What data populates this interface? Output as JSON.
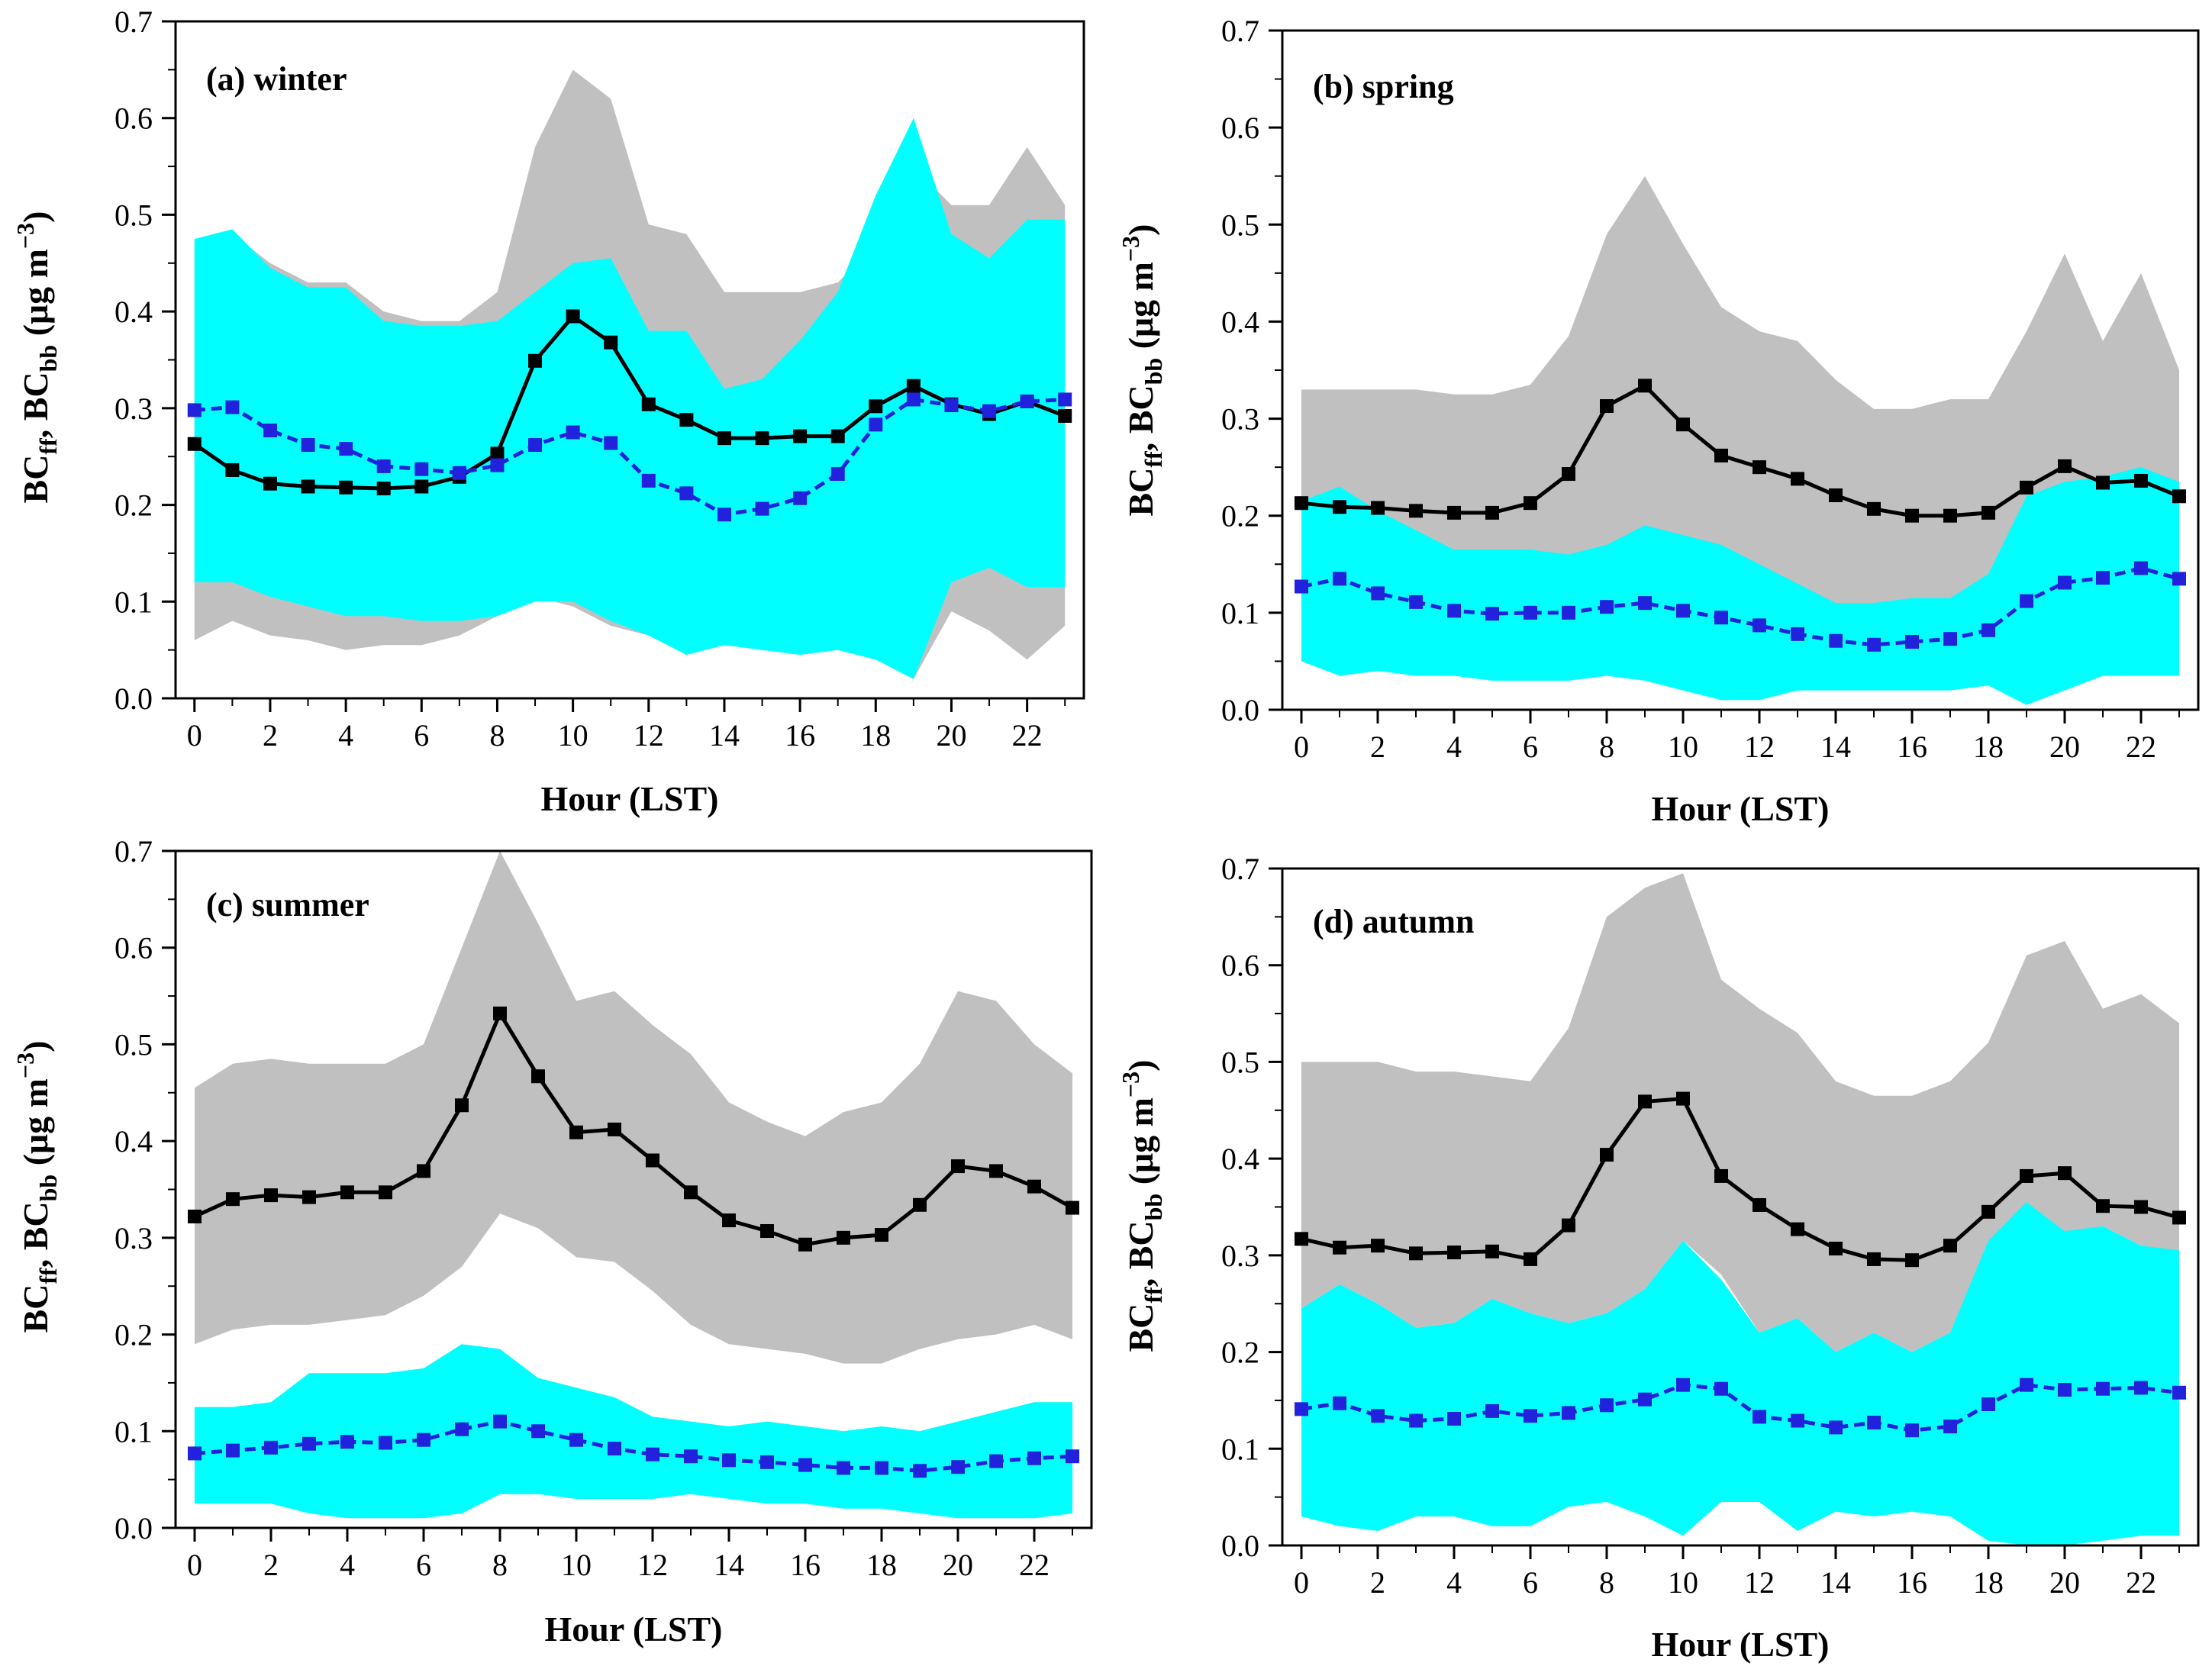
{
  "figure": {
    "xlabel": "Hour (LST)",
    "ylabel": {
      "main": "BC",
      "sub1": "ff",
      "sep": ", BC",
      "sub2": "bb",
      "unit_open": " (μg m",
      "sup": "−3",
      "unit_close": ")"
    }
  },
  "colors": {
    "ff_line": "#000000",
    "bb_line": "#2222dd",
    "ff_band": "#c0c0c0",
    "bb_band": "#00ffff"
  },
  "chart_data": [
    {
      "type": "line",
      "title": "(a) winter",
      "xlabel": "Hour (LST)",
      "ylabel": "BCff, BCbb (μg m−3)",
      "x": [
        0,
        1,
        2,
        3,
        4,
        5,
        6,
        7,
        8,
        9,
        10,
        11,
        12,
        13,
        14,
        15,
        16,
        17,
        18,
        19,
        20,
        21,
        22,
        23
      ],
      "xlim": [
        -0.5,
        23.5
      ],
      "ylim": [
        0,
        0.7
      ],
      "xticks": [
        0,
        2,
        4,
        6,
        8,
        10,
        12,
        14,
        16,
        18,
        20,
        22
      ],
      "yticks": [
        0.0,
        0.1,
        0.2,
        0.3,
        0.4,
        0.5,
        0.6,
        0.7
      ],
      "ytick_labels": [
        "0.0",
        "0.1",
        "0.2",
        "0.3",
        "0.4",
        "0.5",
        "0.6",
        "0.7"
      ],
      "series": [
        {
          "name": "BCff",
          "values": [
            0.263,
            0.236,
            0.222,
            0.219,
            0.218,
            0.217,
            0.219,
            0.229,
            0.253,
            0.349,
            0.395,
            0.368,
            0.304,
            0.288,
            0.269,
            0.269,
            0.271,
            0.271,
            0.302,
            0.323,
            0.304,
            0.294,
            0.307,
            0.292
          ],
          "upper": [
            0.47,
            0.48,
            0.45,
            0.43,
            0.43,
            0.4,
            0.39,
            0.39,
            0.42,
            0.57,
            0.65,
            0.62,
            0.49,
            0.48,
            0.42,
            0.42,
            0.42,
            0.43,
            0.47,
            0.55,
            0.51,
            0.51,
            0.57,
            0.51
          ],
          "lower": [
            0.06,
            0.08,
            0.065,
            0.06,
            0.05,
            0.055,
            0.055,
            0.065,
            0.085,
            0.105,
            0.095,
            0.075,
            0.065,
            0.045,
            0.055,
            0.05,
            0.045,
            0.05,
            0.04,
            0.02,
            0.09,
            0.07,
            0.04,
            0.075
          ]
        },
        {
          "name": "BCbb",
          "values": [
            0.298,
            0.301,
            0.277,
            0.262,
            0.258,
            0.24,
            0.237,
            0.233,
            0.241,
            0.262,
            0.275,
            0.264,
            0.225,
            0.212,
            0.19,
            0.196,
            0.207,
            0.232,
            0.283,
            0.309,
            0.303,
            0.297,
            0.307,
            0.309
          ],
          "upper": [
            0.475,
            0.485,
            0.445,
            0.425,
            0.425,
            0.39,
            0.385,
            0.385,
            0.39,
            0.42,
            0.45,
            0.455,
            0.38,
            0.38,
            0.32,
            0.33,
            0.37,
            0.42,
            0.52,
            0.6,
            0.48,
            0.455,
            0.495,
            0.495
          ],
          "lower": [
            0.12,
            0.12,
            0.105,
            0.095,
            0.085,
            0.085,
            0.08,
            0.08,
            0.085,
            0.1,
            0.1,
            0.08,
            0.065,
            0.045,
            0.055,
            0.05,
            0.045,
            0.05,
            0.04,
            0.02,
            0.12,
            0.135,
            0.115,
            0.115
          ]
        }
      ]
    },
    {
      "type": "line",
      "title": "(b) spring",
      "xlabel": "Hour (LST)",
      "ylabel": "BCff, BCbb (μg m−3)",
      "x": [
        0,
        1,
        2,
        3,
        4,
        5,
        6,
        7,
        8,
        9,
        10,
        11,
        12,
        13,
        14,
        15,
        16,
        17,
        18,
        19,
        20,
        21,
        22,
        23
      ],
      "xlim": [
        -0.5,
        23.5
      ],
      "ylim": [
        0,
        0.7
      ],
      "xticks": [
        0,
        2,
        4,
        6,
        8,
        10,
        12,
        14,
        16,
        18,
        20,
        22
      ],
      "yticks": [
        0.0,
        0.1,
        0.2,
        0.3,
        0.4,
        0.5,
        0.6,
        0.7
      ],
      "ytick_labels": [
        "0.0",
        "0.1",
        "0.2",
        "0.3",
        "0.4",
        "0.5",
        "0.6",
        "0.7"
      ],
      "series": [
        {
          "name": "BCff",
          "values": [
            0.213,
            0.209,
            0.208,
            0.205,
            0.203,
            0.203,
            0.213,
            0.243,
            0.313,
            0.334,
            0.294,
            0.262,
            0.25,
            0.238,
            0.221,
            0.207,
            0.2,
            0.2,
            0.203,
            0.229,
            0.251,
            0.234,
            0.236,
            0.22
          ],
          "upper": [
            0.33,
            0.33,
            0.33,
            0.33,
            0.325,
            0.325,
            0.335,
            0.385,
            0.49,
            0.55,
            0.48,
            0.415,
            0.39,
            0.38,
            0.34,
            0.31,
            0.31,
            0.32,
            0.32,
            0.39,
            0.47,
            0.38,
            0.45,
            0.35
          ],
          "lower": [
            0.13,
            0.13,
            0.12,
            0.12,
            0.12,
            0.11,
            0.11,
            0.11,
            0.12,
            0.13,
            0.11,
            0.11,
            0.09,
            0.075,
            0.06,
            0.055,
            0.06,
            0.055,
            0.06,
            0.13,
            0.14,
            0.14,
            0.15,
            0.13
          ]
        },
        {
          "name": "BCbb",
          "values": [
            0.127,
            0.135,
            0.12,
            0.111,
            0.102,
            0.099,
            0.1,
            0.1,
            0.106,
            0.11,
            0.102,
            0.095,
            0.087,
            0.078,
            0.071,
            0.067,
            0.07,
            0.073,
            0.082,
            0.112,
            0.131,
            0.136,
            0.146,
            0.135
          ],
          "upper": [
            0.215,
            0.23,
            0.205,
            0.185,
            0.165,
            0.165,
            0.165,
            0.16,
            0.17,
            0.19,
            0.18,
            0.17,
            0.15,
            0.13,
            0.11,
            0.11,
            0.115,
            0.115,
            0.14,
            0.22,
            0.235,
            0.24,
            0.25,
            0.235
          ],
          "lower": [
            0.05,
            0.035,
            0.04,
            0.035,
            0.035,
            0.03,
            0.03,
            0.03,
            0.035,
            0.03,
            0.02,
            0.01,
            0.01,
            0.02,
            0.02,
            0.02,
            0.02,
            0.02,
            0.025,
            0.005,
            0.02,
            0.035,
            0.035,
            0.035
          ]
        }
      ]
    },
    {
      "type": "line",
      "title": "(c) summer",
      "xlabel": "Hour (LST)",
      "ylabel": "BCff, BCbb (μg m−3)",
      "x": [
        0,
        1,
        2,
        3,
        4,
        5,
        6,
        7,
        8,
        9,
        10,
        11,
        12,
        13,
        14,
        15,
        16,
        17,
        18,
        19,
        20,
        21,
        22,
        23
      ],
      "xlim": [
        -0.5,
        23.5
      ],
      "ylim": [
        0,
        0.7
      ],
      "xticks": [
        0,
        2,
        4,
        6,
        8,
        10,
        12,
        14,
        16,
        18,
        20,
        22
      ],
      "yticks": [
        0.0,
        0.1,
        0.2,
        0.3,
        0.4,
        0.5,
        0.6,
        0.7
      ],
      "ytick_labels": [
        "0.0",
        "0.1",
        "0.2",
        "0.3",
        "0.4",
        "0.5",
        "0.6",
        "0.7"
      ],
      "series": [
        {
          "name": "BCff",
          "values": [
            0.322,
            0.34,
            0.344,
            0.342,
            0.347,
            0.347,
            0.369,
            0.437,
            0.532,
            0.467,
            0.409,
            0.412,
            0.38,
            0.347,
            0.318,
            0.307,
            0.293,
            0.3,
            0.303,
            0.334,
            0.374,
            0.369,
            0.353,
            0.331
          ],
          "upper": [
            0.455,
            0.48,
            0.485,
            0.48,
            0.48,
            0.48,
            0.5,
            0.6,
            0.7,
            0.625,
            0.545,
            0.555,
            0.52,
            0.49,
            0.44,
            0.42,
            0.405,
            0.43,
            0.44,
            0.48,
            0.555,
            0.545,
            0.5,
            0.47
          ],
          "lower": [
            0.19,
            0.205,
            0.21,
            0.21,
            0.215,
            0.22,
            0.24,
            0.27,
            0.325,
            0.31,
            0.28,
            0.275,
            0.245,
            0.21,
            0.19,
            0.185,
            0.18,
            0.17,
            0.17,
            0.185,
            0.195,
            0.2,
            0.21,
            0.195
          ]
        },
        {
          "name": "BCbb",
          "values": [
            0.077,
            0.08,
            0.083,
            0.087,
            0.089,
            0.088,
            0.091,
            0.102,
            0.11,
            0.1,
            0.091,
            0.082,
            0.076,
            0.074,
            0.07,
            0.068,
            0.065,
            0.062,
            0.062,
            0.059,
            0.063,
            0.069,
            0.072,
            0.074
          ],
          "upper": [
            0.125,
            0.125,
            0.13,
            0.16,
            0.16,
            0.16,
            0.165,
            0.19,
            0.185,
            0.155,
            0.145,
            0.135,
            0.115,
            0.11,
            0.105,
            0.11,
            0.105,
            0.1,
            0.105,
            0.1,
            0.11,
            0.12,
            0.13,
            0.13
          ],
          "lower": [
            0.025,
            0.025,
            0.025,
            0.015,
            0.01,
            0.01,
            0.01,
            0.015,
            0.035,
            0.035,
            0.03,
            0.03,
            0.03,
            0.035,
            0.03,
            0.025,
            0.025,
            0.02,
            0.02,
            0.015,
            0.01,
            0.01,
            0.01,
            0.015
          ]
        }
      ]
    },
    {
      "type": "line",
      "title": "(d) autumn",
      "xlabel": "Hour (LST)",
      "ylabel": "BCff, BCbb (μg m−3)",
      "x": [
        0,
        1,
        2,
        3,
        4,
        5,
        6,
        7,
        8,
        9,
        10,
        11,
        12,
        13,
        14,
        15,
        16,
        17,
        18,
        19,
        20,
        21,
        22,
        23
      ],
      "xlim": [
        -0.5,
        23.5
      ],
      "ylim": [
        0,
        0.7
      ],
      "xticks": [
        0,
        2,
        4,
        6,
        8,
        10,
        12,
        14,
        16,
        18,
        20,
        22
      ],
      "yticks": [
        0.0,
        0.1,
        0.2,
        0.3,
        0.4,
        0.5,
        0.6,
        0.7
      ],
      "ytick_labels": [
        "0.0",
        "0.1",
        "0.2",
        "0.3",
        "0.4",
        "0.5",
        "0.6",
        "0.7"
      ],
      "series": [
        {
          "name": "BCff",
          "values": [
            0.317,
            0.308,
            0.31,
            0.302,
            0.303,
            0.304,
            0.296,
            0.331,
            0.404,
            0.459,
            0.462,
            0.382,
            0.352,
            0.327,
            0.307,
            0.296,
            0.295,
            0.31,
            0.345,
            0.382,
            0.385,
            0.351,
            0.35,
            0.339
          ],
          "upper": [
            0.5,
            0.5,
            0.5,
            0.49,
            0.49,
            0.485,
            0.48,
            0.535,
            0.65,
            0.68,
            0.695,
            0.585,
            0.555,
            0.53,
            0.48,
            0.465,
            0.465,
            0.48,
            0.52,
            0.61,
            0.625,
            0.555,
            0.57,
            0.54
          ],
          "lower": [
            0.245,
            0.27,
            0.25,
            0.225,
            0.23,
            0.255,
            0.24,
            0.23,
            0.24,
            0.265,
            0.315,
            0.28,
            0.22,
            0.235,
            0.2,
            0.22,
            0.2,
            0.22,
            0.31,
            0.35,
            0.32,
            0.33,
            0.31,
            0.3
          ]
        },
        {
          "name": "BCbb",
          "values": [
            0.141,
            0.147,
            0.134,
            0.129,
            0.131,
            0.139,
            0.134,
            0.137,
            0.145,
            0.151,
            0.166,
            0.162,
            0.133,
            0.129,
            0.122,
            0.127,
            0.119,
            0.123,
            0.146,
            0.166,
            0.161,
            0.162,
            0.163,
            0.158
          ],
          "upper": [
            0.245,
            0.27,
            0.25,
            0.225,
            0.23,
            0.255,
            0.24,
            0.23,
            0.24,
            0.265,
            0.315,
            0.275,
            0.22,
            0.235,
            0.2,
            0.22,
            0.2,
            0.22,
            0.315,
            0.355,
            0.325,
            0.33,
            0.31,
            0.305
          ],
          "lower": [
            0.03,
            0.02,
            0.015,
            0.03,
            0.03,
            0.02,
            0.02,
            0.04,
            0.045,
            0.03,
            0.01,
            0.045,
            0.045,
            0.015,
            0.035,
            0.03,
            0.035,
            0.03,
            0.005,
            0.0,
            0.0,
            0.005,
            0.01,
            0.01
          ]
        }
      ]
    }
  ]
}
